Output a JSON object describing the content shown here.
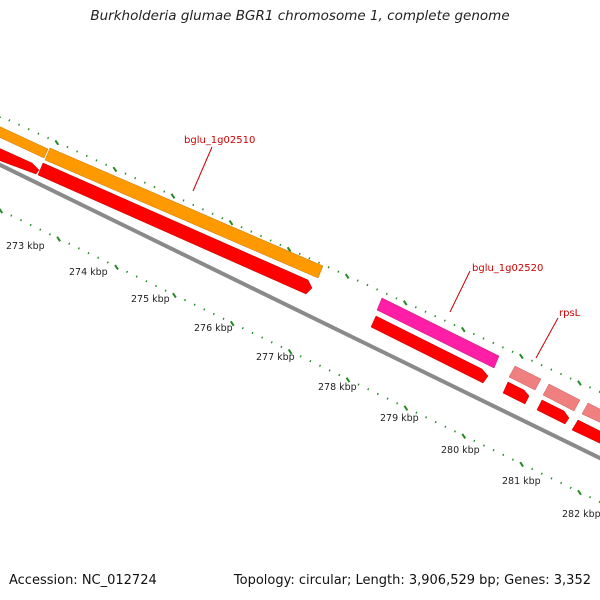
{
  "title": "Burkholderia glumae BGR1 chromosome 1, complete genome",
  "footer": {
    "accession": "Accession: NC_012724",
    "topology": "Topology: circular; Length: 3,906,529 bp; Genes: 3,352"
  },
  "colors": {
    "backbone": "#8a8a8a",
    "tick": "#228b22",
    "gene": "#ff0000",
    "gene_orange": "#ff9900",
    "gene_magenta": "#ff1fa6",
    "gene_pink": "#f08080",
    "label": "#cc0000"
  },
  "kbp_labels": [
    "273 kbp",
    "274 kbp",
    "275 kbp",
    "276 kbp",
    "277 kbp",
    "278 kbp",
    "279 kbp",
    "280 kbp",
    "281 kbp",
    "282 kbp"
  ],
  "gene_labels": [
    "bglu_1g02510",
    "bglu_1g02520",
    "rpsL"
  ]
}
